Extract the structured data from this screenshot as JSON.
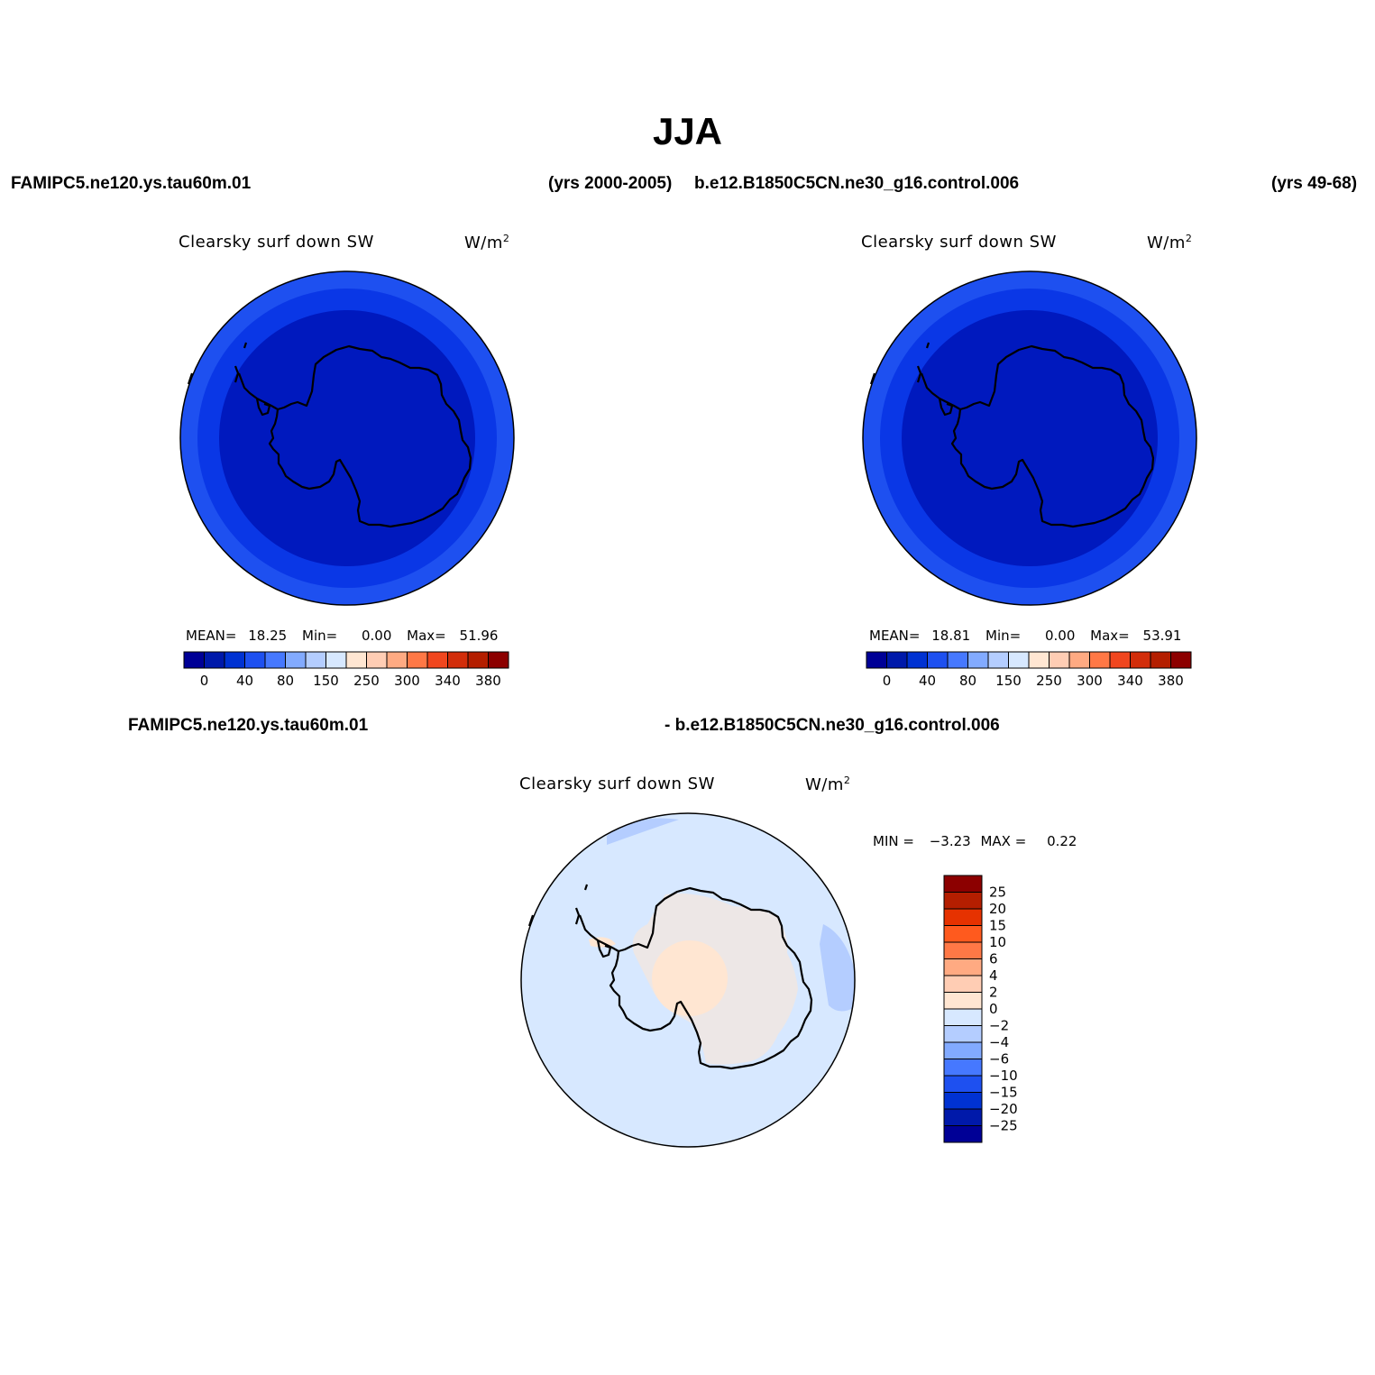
{
  "title": "JJA",
  "header": {
    "case1": "FAMIPC5.ne120.ys.tau60m.01",
    "case1_years": "(yrs 2000-2005)",
    "case2": "b.e12.B1850C5CN.ne30_g16.control.006",
    "case2_years": "(yrs 49-68)",
    "diff_left": "FAMIPC5.ne120.ys.tau60m.01",
    "diff_right": "- b.e12.B1850C5CN.ne30_g16.control.006"
  },
  "panels": [
    {
      "variable": "Clearsky surf down SW",
      "units": "W/m",
      "units_sup": "2",
      "stats": {
        "mean_label": "MEAN=",
        "mean": "18.25",
        "min_label": "Min=",
        "min": "0.00",
        "max_label": "Max=",
        "max": "51.96"
      }
    },
    {
      "variable": "Clearsky surf down SW",
      "units": "W/m",
      "units_sup": "2",
      "stats": {
        "mean_label": "MEAN=",
        "mean": "18.81",
        "min_label": "Min=",
        "min": "0.00",
        "max_label": "Max=",
        "max": "53.91"
      }
    },
    {
      "variable": "Clearsky surf down SW",
      "units": "W/m",
      "units_sup": "2",
      "stats": {
        "min_label": "MIN =",
        "min": "−3.23",
        "max_label": "MAX =",
        "max": "0.22"
      }
    }
  ],
  "colorbar_abs": {
    "colors": [
      "#000096",
      "#0019aa",
      "#0032d2",
      "#1e50f0",
      "#4678ff",
      "#82aaff",
      "#b4cdff",
      "#d7e8ff",
      "#ffe6d2",
      "#ffcdb4",
      "#ffaa82",
      "#ff7846",
      "#f0461e",
      "#d22d0a",
      "#b41e00",
      "#8c0000"
    ],
    "labels": [
      "0",
      "40",
      "80",
      "150",
      "250",
      "300",
      "340",
      "380"
    ]
  },
  "colorbar_diff": {
    "colors": [
      "#8c0000",
      "#b41e00",
      "#e63200",
      "#ff5a1e",
      "#ff7846",
      "#ffaa82",
      "#ffcdb4",
      "#ffe6d2",
      "#d7e8ff",
      "#b4cdff",
      "#82aaff",
      "#4678ff",
      "#1e50f0",
      "#0032d2",
      "#0019aa",
      "#000096"
    ],
    "labels": [
      "25",
      "20",
      "15",
      "10",
      "6",
      "4",
      "2",
      "0",
      "−2",
      "−4",
      "−6",
      "−10",
      "−15",
      "−20",
      "−25"
    ]
  },
  "map_colors": {
    "outer_ring": "#1e50f0",
    "middle_ring": "#0a37e6",
    "inner": "#0019be",
    "diff_base": "#d7e8ff",
    "diff_pos": "#ffe6d2",
    "diff_neg": "#b4cdff",
    "coast": "#000000"
  }
}
